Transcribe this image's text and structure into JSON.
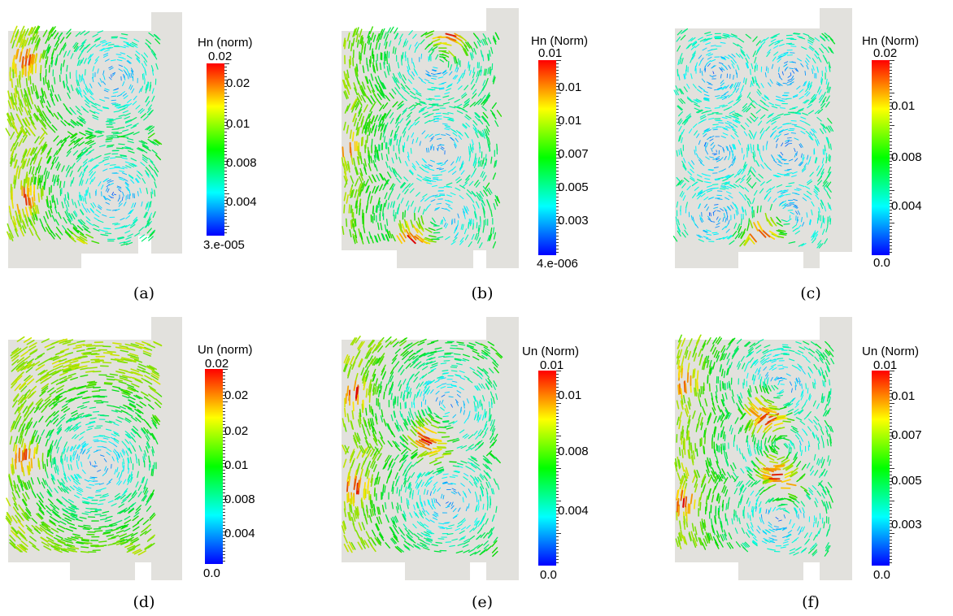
{
  "figure": {
    "panels": [
      {
        "id": "a",
        "caption": "(a)",
        "colorbar": {
          "title": "Hn (norm)",
          "top_label": "0.02",
          "ticks": [
            "0.02",
            "0.01",
            "0.008",
            "0.004"
          ],
          "bottom_label": "3.e-005"
        }
      },
      {
        "id": "b",
        "caption": "(b)",
        "colorbar": {
          "title": "Hn (Norm)",
          "top_label": "0.01",
          "ticks": [
            "0.01",
            "0.01",
            "0.007",
            "0.005",
            "0.003"
          ],
          "bottom_label": "4.e-006"
        }
      },
      {
        "id": "c",
        "caption": "(c)",
        "colorbar": {
          "title": "Hn (Norm)",
          "top_label": "0.02",
          "ticks": [
            "0.01",
            "0.008",
            "0.004"
          ],
          "bottom_label": "0.0"
        }
      },
      {
        "id": "d",
        "caption": "(d)",
        "colorbar": {
          "title": "Un (norm)",
          "top_label": "0.02",
          "ticks": [
            "0.02",
            "0.02",
            "0.01",
            "0.008",
            "0.004"
          ],
          "bottom_label": "0.0"
        }
      },
      {
        "id": "e",
        "caption": "(e)",
        "colorbar": {
          "title": "Un (Norm)",
          "top_label": "0.01",
          "ticks": [
            "0.01",
            "0.008",
            "0.004"
          ],
          "bottom_label": "0.0"
        }
      },
      {
        "id": "f",
        "caption": "(f)",
        "colorbar": {
          "title": "Un (Norm)",
          "top_label": "0.01",
          "ticks": [
            "0.01",
            "0.007",
            "0.005",
            "0.003"
          ],
          "bottom_label": "0.0"
        }
      }
    ]
  }
}
